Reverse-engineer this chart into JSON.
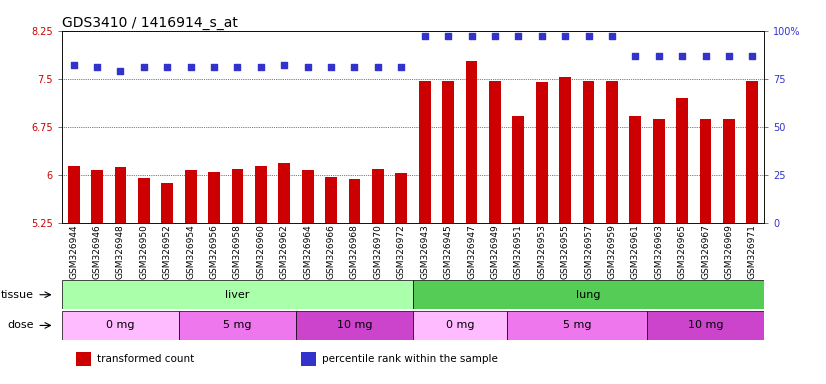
{
  "title": "GDS3410 / 1416914_s_at",
  "samples": [
    "GSM326944",
    "GSM326946",
    "GSM326948",
    "GSM326950",
    "GSM326952",
    "GSM326954",
    "GSM326956",
    "GSM326958",
    "GSM326960",
    "GSM326962",
    "GSM326964",
    "GSM326966",
    "GSM326968",
    "GSM326970",
    "GSM326972",
    "GSM326943",
    "GSM326945",
    "GSM326947",
    "GSM326949",
    "GSM326951",
    "GSM326953",
    "GSM326955",
    "GSM326957",
    "GSM326959",
    "GSM326961",
    "GSM326963",
    "GSM326965",
    "GSM326967",
    "GSM326969",
    "GSM326971"
  ],
  "bar_values": [
    6.13,
    6.07,
    6.12,
    5.95,
    5.87,
    6.08,
    6.05,
    6.09,
    6.13,
    6.18,
    6.08,
    5.97,
    5.93,
    6.09,
    6.03,
    7.47,
    7.47,
    7.78,
    7.47,
    6.91,
    7.45,
    7.53,
    7.47,
    7.47,
    6.91,
    6.87,
    7.2,
    6.87,
    6.87,
    7.47
  ],
  "percentile_values": [
    82,
    81,
    79,
    81,
    81,
    81,
    81,
    81,
    81,
    82,
    81,
    81,
    81,
    81,
    81,
    97,
    97,
    97,
    97,
    97,
    97,
    97,
    97,
    97,
    87,
    87,
    87,
    87,
    87,
    87
  ],
  "bar_color": "#cc0000",
  "dot_color": "#3333cc",
  "ymin": 5.25,
  "ymax": 8.25,
  "yticks": [
    5.25,
    6.0,
    6.75,
    7.5,
    8.25
  ],
  "ytick_labels": [
    "5.25",
    "6",
    "6.75",
    "7.5",
    "8.25"
  ],
  "right_yticks": [
    0,
    25,
    50,
    75,
    100
  ],
  "right_ytick_labels": [
    "0",
    "25",
    "50",
    "75",
    "100%"
  ],
  "tissue_groups": [
    {
      "label": "liver",
      "start": 0,
      "end": 15,
      "color": "#aaffaa"
    },
    {
      "label": "lung",
      "start": 15,
      "end": 30,
      "color": "#55cc55"
    }
  ],
  "dose_groups": [
    {
      "label": "0 mg",
      "start": 0,
      "end": 5,
      "color": "#ffbbff"
    },
    {
      "label": "5 mg",
      "start": 5,
      "end": 10,
      "color": "#ee77ee"
    },
    {
      "label": "10 mg",
      "start": 10,
      "end": 15,
      "color": "#cc44cc"
    },
    {
      "label": "0 mg",
      "start": 15,
      "end": 19,
      "color": "#ffbbff"
    },
    {
      "label": "5 mg",
      "start": 19,
      "end": 25,
      "color": "#ee77ee"
    },
    {
      "label": "10 mg",
      "start": 25,
      "end": 30,
      "color": "#cc44cc"
    }
  ],
  "legend_entries": [
    {
      "label": "transformed count",
      "color": "#cc0000"
    },
    {
      "label": "percentile rank within the sample",
      "color": "#3333cc"
    }
  ],
  "fig_bg": "#ffffff",
  "plot_bg": "#ffffff",
  "title_fontsize": 10,
  "tick_fontsize": 7,
  "label_fontsize": 8,
  "annot_fontsize": 8
}
